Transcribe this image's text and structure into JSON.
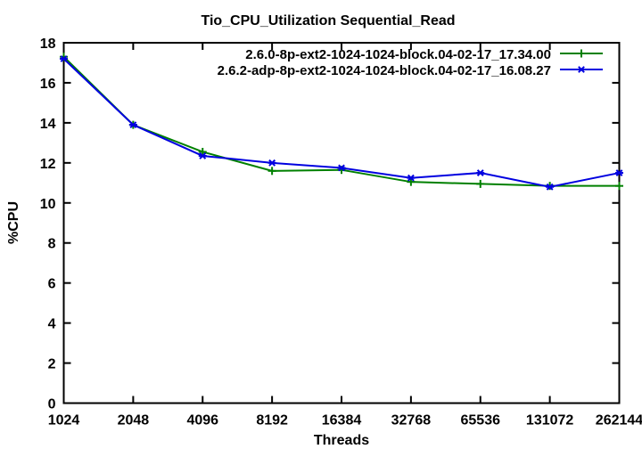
{
  "chart_data": {
    "type": "line",
    "title": "Tio_CPU_Utilization Sequential_Read",
    "xlabel": "Threads",
    "ylabel": "%CPU",
    "x_scale": "log2",
    "grid": false,
    "legend_position": "top-right-inside",
    "categories": [
      "1024",
      "2048",
      "4096",
      "8192",
      "16384",
      "32768",
      "65536",
      "131072",
      "262144"
    ],
    "ylim": [
      0,
      18
    ],
    "y_ticks": [
      0,
      2,
      4,
      6,
      8,
      10,
      12,
      14,
      16,
      18
    ],
    "series": [
      {
        "name": "2.6.0-8p-ext2-1024-1024-block.04-02-17_17.34.00",
        "color": "#008000",
        "marker": "plus",
        "values": [
          17.3,
          13.9,
          12.55,
          11.6,
          11.65,
          11.05,
          10.95,
          10.85,
          10.85
        ]
      },
      {
        "name": "2.6.2-adp-8p-ext2-1024-1024-block.04-02-17_16.08.27",
        "color": "#0000e0",
        "marker": "star",
        "values": [
          17.2,
          13.9,
          12.35,
          12.0,
          11.75,
          11.25,
          11.5,
          10.8,
          11.5
        ]
      }
    ],
    "axis_color": "#000000"
  }
}
